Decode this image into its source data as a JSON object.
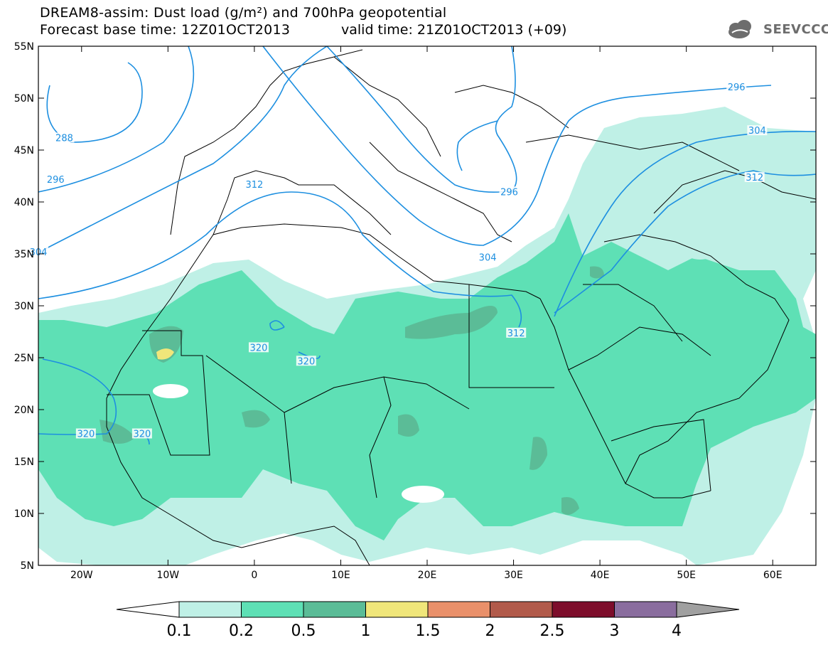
{
  "header": {
    "title_line1": "DREAM8-assim: Dust load (g/m²) and 700hPa geopotential",
    "base_time": "Forecast base time: 12Z01OCT2013",
    "valid_time": "valid time: 21Z01OCT2013 (+09)"
  },
  "logo": {
    "text": "SEEVCCC",
    "icon": "cloud-icon"
  },
  "map": {
    "lon_range": [
      -25,
      65
    ],
    "lat_range": [
      5,
      55
    ],
    "lat_ticks": [
      "55N",
      "50N",
      "45N",
      "40N",
      "35N",
      "30N",
      "25N",
      "20N",
      "15N",
      "10N",
      "5N"
    ],
    "lon_ticks": [
      "20W",
      "10W",
      "0",
      "10E",
      "20E",
      "30E",
      "40E",
      "50E",
      "60E"
    ],
    "contour_labels": [
      {
        "text": "288",
        "lon": -22,
        "lat": 46
      },
      {
        "text": "296",
        "lon": -23,
        "lat": 42
      },
      {
        "text": "304",
        "lon": -25,
        "lat": 35
      },
      {
        "text": "312",
        "lon": 0,
        "lat": 41.5
      },
      {
        "text": "320",
        "lon": 0.5,
        "lat": 25.8
      },
      {
        "text": "320",
        "lon": 6,
        "lat": 24.5
      },
      {
        "text": "320",
        "lon": -19.5,
        "lat": 17.5
      },
      {
        "text": "320",
        "lon": -13,
        "lat": 17.5
      },
      {
        "text": "296",
        "lon": 29.5,
        "lat": 40.8
      },
      {
        "text": "304",
        "lon": 27,
        "lat": 34.5
      },
      {
        "text": "312",
        "lon": 30.3,
        "lat": 27.2
      },
      {
        "text": "296",
        "lon": 55.8,
        "lat": 50.9
      },
      {
        "text": "304",
        "lon": 58.2,
        "lat": 46.7
      },
      {
        "text": "312",
        "lon": 57.9,
        "lat": 42.2
      }
    ]
  },
  "colorbar": {
    "labels": [
      "0.1",
      "0.2",
      "0.5",
      "1",
      "1.5",
      "2",
      "2.5",
      "3",
      "4"
    ],
    "colors": [
      "#bff0e6",
      "#5ee0b5",
      "#5bbc97",
      "#f0e67a",
      "#e9906a",
      "#b15a4a",
      "#7d0d2b",
      "#8a6d9e"
    ],
    "under_color": "#ffffff",
    "over_color": "#a0a0a0"
  },
  "colors": {
    "contour": "#1d8fe0",
    "dust_low": "#bff0e6",
    "dust_mid": "#5ee0b5",
    "dust_high": "#5bbc97",
    "dust_peak": "#f0e67a"
  }
}
